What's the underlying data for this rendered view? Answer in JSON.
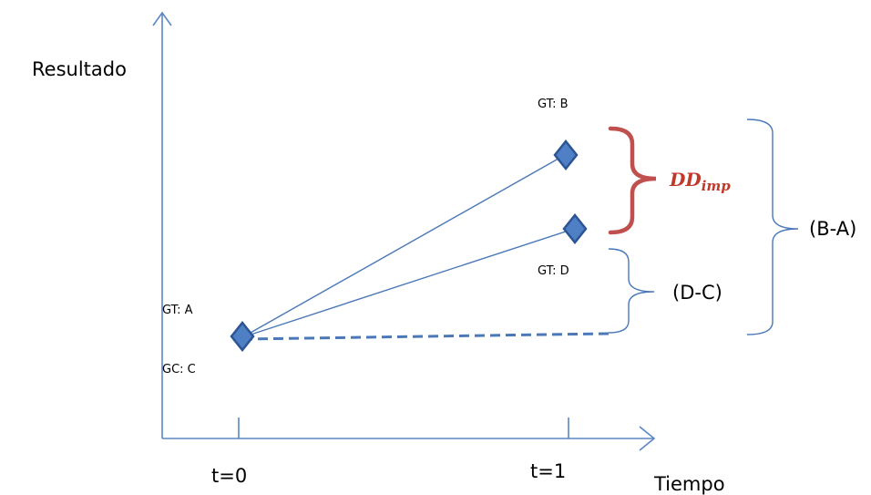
{
  "axes": {
    "y_label": "Resultado",
    "x_label": "Tiempo",
    "x_ticks": [
      "t=0",
      "t=1"
    ]
  },
  "points": {
    "treatment_start": "GT: A",
    "control_start": "GC: C",
    "treatment_end": "GT: B",
    "counterfactual_end": "GT: D"
  },
  "braces": {
    "total_change": "(B-A)",
    "trend_change": "(D-C)",
    "impact_main": "DD",
    "impact_sub": "imp"
  },
  "colors": {
    "axis": "#5b87c5",
    "line": "#4a78b8",
    "marker_fill": "#4f7fc4",
    "marker_stroke": "#2c5596",
    "impact_brace": "#c0504d",
    "impact_text": "#c0392b"
  }
}
